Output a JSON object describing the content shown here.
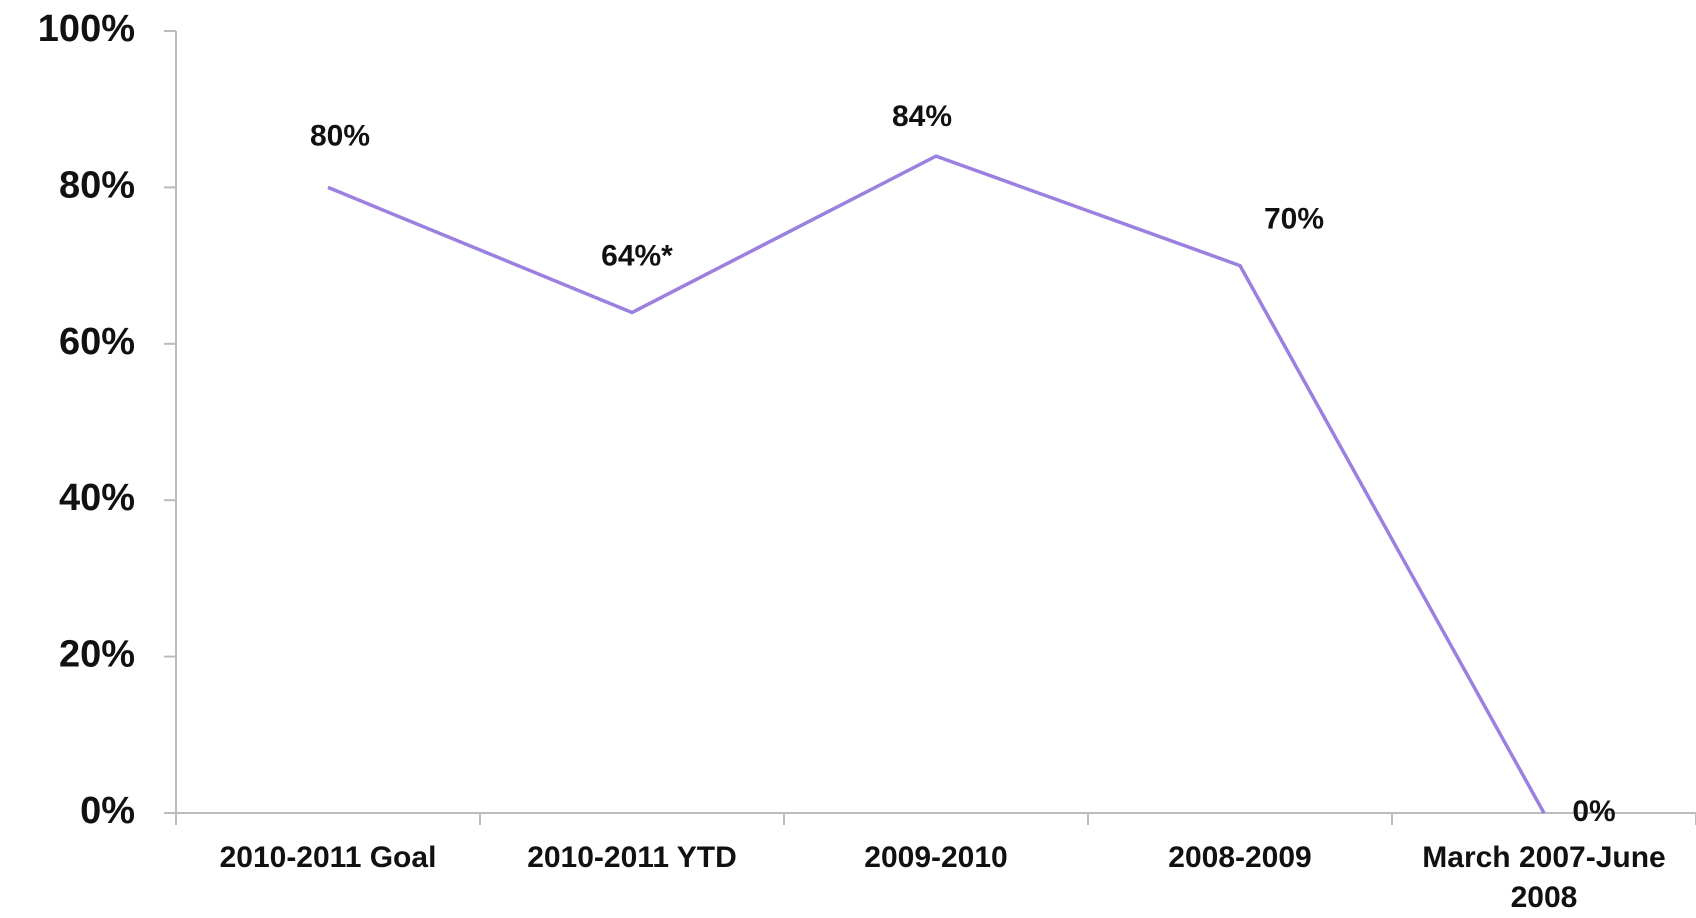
{
  "chart_data": {
    "type": "line",
    "categories": [
      "2010-2011 Goal",
      "2010-2011 YTD",
      "2009-2010",
      "2008-2009",
      "March 2007-June 2008"
    ],
    "series": [
      {
        "color": "#9b80e0",
        "values": [
          80,
          64,
          84,
          70,
          0
        ],
        "value_labels": [
          "80%",
          "64%*",
          "84%",
          "70%",
          "0%"
        ]
      }
    ],
    "ylim": [
      0,
      100
    ],
    "yticks": [
      {
        "value": 0,
        "label": "0%"
      },
      {
        "value": 20,
        "label": "20%"
      },
      {
        "value": 40,
        "label": "40%"
      },
      {
        "value": 60,
        "label": "60%"
      },
      {
        "value": 80,
        "label": "80%"
      },
      {
        "value": 100,
        "label": "100%"
      }
    ]
  }
}
